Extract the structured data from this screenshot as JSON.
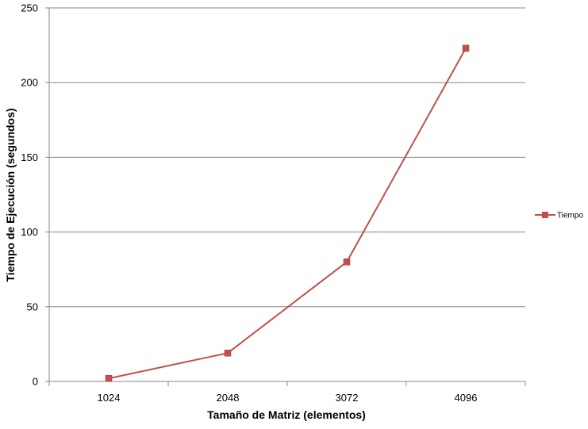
{
  "chart_data": {
    "type": "line",
    "title": "",
    "xlabel": "Tamaño de Matriz (elementos)",
    "ylabel": "Tiempo de Ejecución (segundos)",
    "categories": [
      "1024",
      "2048",
      "3072",
      "4096"
    ],
    "ylim": [
      0,
      250
    ],
    "yticks": [
      0,
      50,
      100,
      150,
      200,
      250
    ],
    "grid": "horizontal",
    "legend_position": "right",
    "series": [
      {
        "name": "Tiempo",
        "values": [
          2,
          19,
          80,
          223
        ],
        "color": "#c0504d",
        "marker": "square"
      }
    ]
  }
}
